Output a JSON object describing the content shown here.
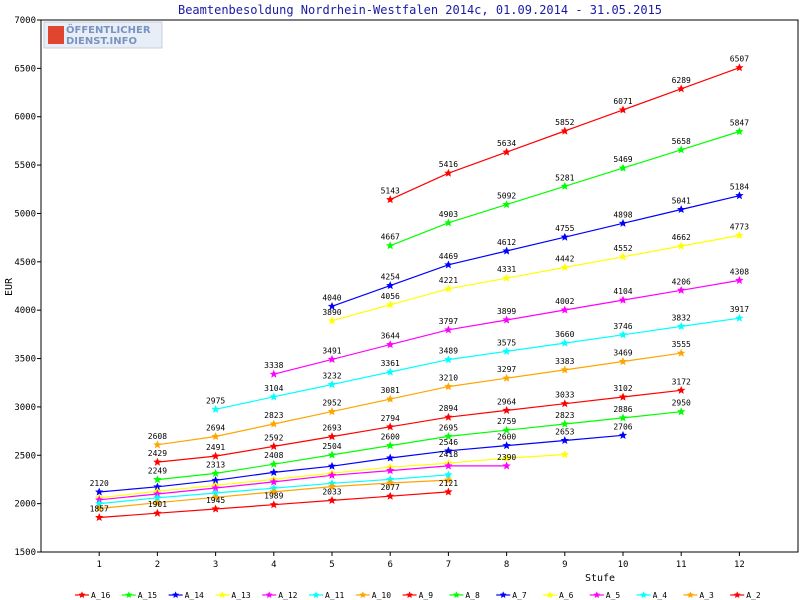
{
  "chart_data": {
    "type": "line",
    "title": "Beamtenbesoldung Nordrhein-Westfalen 2014c, 01.09.2014 - 31.05.2015",
    "xlabel": "Stufe",
    "ylabel": "EUR",
    "xlim": [
      0,
      12
    ],
    "ylim": [
      1500,
      7000
    ],
    "yticks": [
      1500,
      2000,
      2500,
      3000,
      3500,
      4000,
      4500,
      5000,
      5500,
      6000,
      6500,
      7000
    ],
    "xticks": [
      1,
      2,
      3,
      4,
      5,
      6,
      7,
      8,
      9,
      10,
      11,
      12
    ],
    "grid": false,
    "legend_position": "bottom",
    "logo": {
      "line1": "ÖFFENTLICHER",
      "line2": "DIENST.INFO"
    },
    "series": [
      {
        "name": "A_16",
        "color": "#ff0000",
        "x": [
          6,
          7,
          8,
          9,
          10,
          11,
          12
        ],
        "values": [
          5143,
          5416,
          5634,
          5852,
          6071,
          6289,
          6507
        ]
      },
      {
        "name": "A_15",
        "color": "#00ff00",
        "x": [
          6,
          7,
          8,
          9,
          10,
          11,
          12
        ],
        "values": [
          4667,
          4903,
          5092,
          5281,
          5469,
          5658,
          5847
        ]
      },
      {
        "name": "A_14",
        "color": "#0000ff",
        "x": [
          5,
          6,
          7,
          8,
          9,
          10,
          11,
          12
        ],
        "values": [
          4040,
          4254,
          4469,
          4612,
          4755,
          4898,
          5041,
          5184
        ]
      },
      {
        "name": "A_13",
        "color": "#ffff00",
        "x": [
          5,
          6,
          7,
          8,
          9,
          10,
          11,
          12
        ],
        "values": [
          3890,
          4056,
          4221,
          4331,
          4442,
          4552,
          4662,
          4773
        ]
      },
      {
        "name": "A_12",
        "color": "#ff00ff",
        "x": [
          4,
          5,
          6,
          7,
          8,
          9,
          10,
          11,
          12
        ],
        "values": [
          3338,
          3491,
          3644,
          3797,
          3899,
          4002,
          4104,
          4206,
          4308
        ]
      },
      {
        "name": "A_11",
        "color": "#00ffff",
        "x": [
          3,
          4,
          5,
          6,
          7,
          8,
          9,
          10,
          11,
          12
        ],
        "values": [
          2975,
          3104,
          3232,
          3361,
          3489,
          3575,
          3660,
          3746,
          3832,
          3917
        ]
      },
      {
        "name": "A_10",
        "color": "#ffa500",
        "x": [
          2,
          3,
          4,
          5,
          6,
          7,
          8,
          9,
          10,
          11
        ],
        "values": [
          2608,
          2694,
          2823,
          2952,
          3081,
          3210,
          3297,
          3383,
          3469,
          3555
        ]
      },
      {
        "name": "A_9",
        "color": "#ff0000",
        "x": [
          2,
          3,
          4,
          5,
          6,
          7,
          8,
          9,
          10,
          11
        ],
        "values": [
          2429,
          2491,
          2592,
          2693,
          2794,
          2894,
          2964,
          3033,
          3102,
          3172
        ]
      },
      {
        "name": "A_8",
        "color": "#00ff00",
        "x": [
          2,
          3,
          4,
          5,
          6,
          7,
          8,
          9,
          10,
          11
        ],
        "values": [
          2249,
          2313,
          2408,
          2504,
          2600,
          2695,
          2759,
          2823,
          2886,
          2950
        ]
      },
      {
        "name": "A_7",
        "color": "#0000ff",
        "x": [
          1,
          2,
          3,
          4,
          5,
          6,
          7,
          8,
          9,
          10
        ],
        "values": [
          2120,
          2174,
          2241,
          2323,
          2387,
          2472,
          2546,
          2600,
          2653,
          2706
        ]
      },
      {
        "name": "A_6",
        "color": "#ffff00",
        "x": [
          1,
          2,
          3,
          4,
          5,
          6,
          7,
          8,
          9
        ],
        "values": [
          2060,
          2128,
          2190,
          2252,
          2315,
          2377,
          2418,
          2470,
          2508
        ]
      },
      {
        "name": "A_5",
        "color": "#ff00ff",
        "x": [
          1,
          2,
          3,
          4,
          5,
          6,
          7,
          8
        ],
        "values": [
          2040,
          2100,
          2162,
          2225,
          2293,
          2342,
          2390,
          2390
        ]
      },
      {
        "name": "A_4",
        "color": "#00ffff",
        "x": [
          1,
          2,
          3,
          4,
          5,
          6,
          7
        ],
        "values": [
          2000,
          2060,
          2110,
          2160,
          2210,
          2251,
          2298
        ]
      },
      {
        "name": "A_3",
        "color": "#ffa500",
        "x": [
          1,
          2,
          3,
          4,
          5,
          6,
          7
        ],
        "values": [
          1950,
          2010,
          2065,
          2121,
          2176,
          2213,
          2243
        ]
      },
      {
        "name": "A_2",
        "color": "#ff0000",
        "x": [
          1,
          2,
          3,
          4,
          5,
          6,
          7
        ],
        "values": [
          1857,
          1901,
          1945,
          1989,
          2033,
          2077,
          2121
        ]
      }
    ],
    "labeled_points": [
      {
        "series": "A_16",
        "x": [
          6,
          7,
          8,
          9,
          10,
          11,
          12
        ],
        "text": [
          "5143",
          "5416",
          "5634",
          "5852",
          "6071",
          "6289",
          "6507"
        ]
      },
      {
        "series": "A_15",
        "x": [
          6,
          7,
          8,
          9,
          10,
          11,
          12
        ],
        "text": [
          "4667",
          "4903",
          "5092",
          "5281",
          "5469",
          "5658",
          "5847"
        ]
      },
      {
        "series": "A_14",
        "x": [
          5,
          6,
          7,
          8,
          9,
          10,
          11,
          12
        ],
        "text": [
          "4040",
          "4254",
          "4469",
          "4612",
          "4755",
          "4898",
          "5041",
          "5184"
        ]
      },
      {
        "series": "A_13",
        "x": [
          5,
          6,
          7,
          8,
          9,
          10,
          11,
          12
        ],
        "text": [
          "3890",
          "4056",
          "4221",
          "4331",
          "4442",
          "4552",
          "4662",
          "4773"
        ]
      },
      {
        "series": "A_12",
        "x": [
          4,
          5,
          6,
          7,
          8,
          9,
          10,
          11,
          12
        ],
        "text": [
          "3338",
          "3491",
          "3644",
          "3797",
          "3899",
          "4002",
          "4104",
          "4206",
          "4308"
        ]
      },
      {
        "series": "A_11",
        "x": [
          3,
          4,
          5,
          6,
          7,
          8,
          9,
          10,
          11,
          12
        ],
        "text": [
          "2975",
          "3104",
          "3232",
          "3361",
          "3489",
          "3575",
          "3660",
          "3746",
          "3832",
          "3917"
        ]
      },
      {
        "series": "A_10",
        "x": [
          2,
          3,
          4,
          5,
          6,
          7,
          8,
          9,
          10,
          11
        ],
        "text": [
          "2608",
          "2694",
          "2823",
          "2952",
          "3081",
          "3210",
          "3297",
          "3383",
          "3469",
          "3555"
        ]
      },
      {
        "series": "A_9",
        "x": [
          2,
          3,
          4,
          5,
          6,
          7,
          8,
          9,
          10,
          11
        ],
        "text": [
          "2429",
          "2491",
          "2592",
          "2693",
          "2794",
          "2894",
          "2964",
          "3033",
          "3102",
          "3172"
        ]
      },
      {
        "series": "A_8",
        "x": [
          2,
          3,
          4,
          5,
          6,
          7,
          8,
          9,
          10,
          11
        ],
        "text": [
          "2249",
          "2313",
          "2408",
          "2504",
          "2600",
          "2695",
          "2759",
          "2823",
          "2886",
          "2950"
        ]
      },
      {
        "series": "A_7",
        "x": [
          1,
          7,
          8,
          9,
          10
        ],
        "text": [
          "2120",
          "2546",
          "2600",
          "2653",
          "2706"
        ]
      },
      {
        "series": "A_6",
        "x": [
          7
        ],
        "text": [
          "2418"
        ]
      },
      {
        "series": "A_5",
        "x": [
          8
        ],
        "text": [
          "2390"
        ]
      },
      {
        "series": "A_2",
        "x": [
          1,
          2,
          3,
          4,
          5,
          6,
          7
        ],
        "text": [
          "1857",
          "1901",
          "1945",
          "1989",
          "2033",
          "2077",
          "2121"
        ]
      }
    ]
  }
}
